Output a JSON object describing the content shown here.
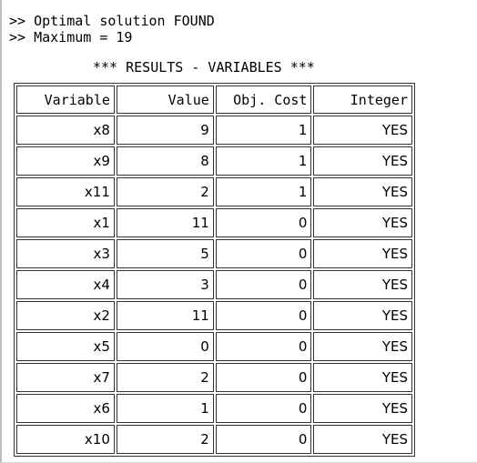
{
  "console": {
    "line1": ">> Optimal solution FOUND",
    "line2": ">> Maximum = 19"
  },
  "results_title": "*** RESULTS - VARIABLES ***",
  "table": {
    "headers": [
      "Variable",
      "Value",
      "Obj. Cost",
      "Integer"
    ],
    "rows": [
      [
        "x8",
        "9",
        "1",
        "YES"
      ],
      [
        "x9",
        "8",
        "1",
        "YES"
      ],
      [
        "x11",
        "2",
        "1",
        "YES"
      ],
      [
        "x1",
        "11",
        "0",
        "YES"
      ],
      [
        "x3",
        "5",
        "0",
        "YES"
      ],
      [
        "x4",
        "3",
        "0",
        "YES"
      ],
      [
        "x2",
        "11",
        "0",
        "YES"
      ],
      [
        "x5",
        "0",
        "0",
        "YES"
      ],
      [
        "x7",
        "2",
        "0",
        "YES"
      ],
      [
        "x6",
        "1",
        "0",
        "YES"
      ],
      [
        "x10",
        "2",
        "0",
        "YES"
      ]
    ]
  }
}
